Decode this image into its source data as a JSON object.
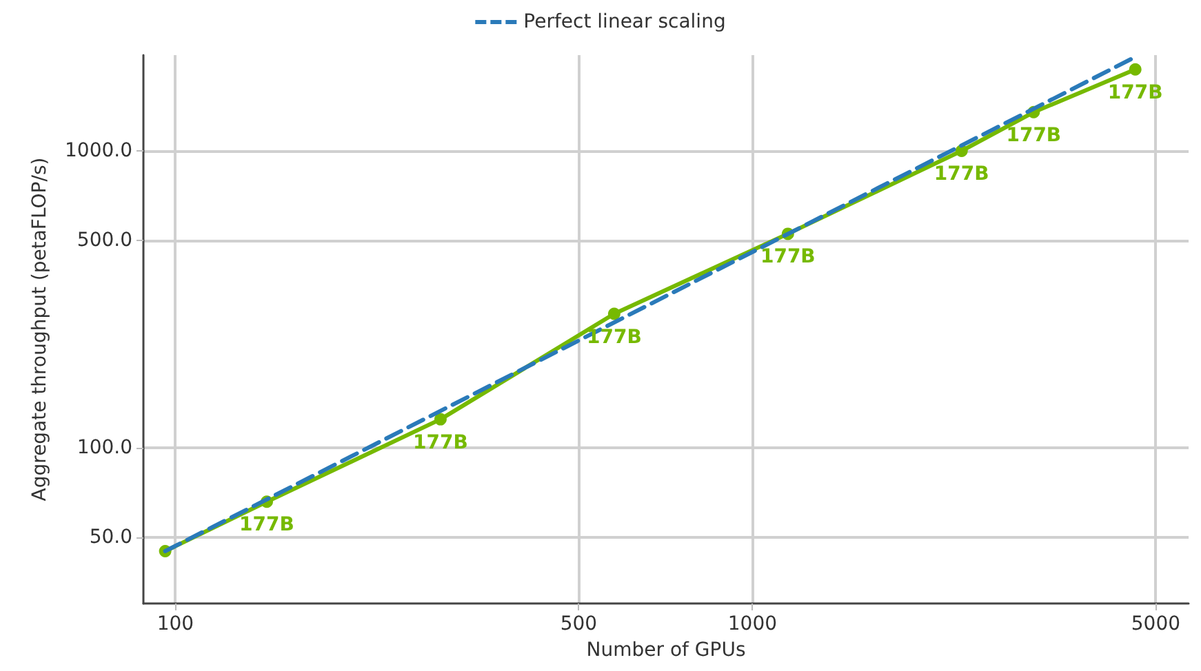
{
  "chart_data": {
    "type": "line",
    "xlabel": "Number of GPUs",
    "ylabel": "Aggregate throughput (petaFLOP/s)",
    "log": "xy",
    "xlim": [
      88,
      5700
    ],
    "ylim": [
      30,
      2100
    ],
    "xticks": [
      100,
      500,
      1000,
      5000
    ],
    "yticks": [
      {
        "value": 50,
        "label": "50.0"
      },
      {
        "value": 100,
        "label": "100.0"
      },
      {
        "value": 500,
        "label": "500.0"
      },
      {
        "value": 1000,
        "label": "1000.0"
      }
    ],
    "grid": true,
    "legend": "top",
    "series": [
      {
        "color": "#76b900",
        "marker": "circle",
        "line_style": "solid",
        "x": [
          96,
          144,
          288,
          576,
          1152,
          2304,
          3072,
          4608
        ],
        "values": [
          45,
          66,
          125,
          283,
          526,
          1000,
          1350,
          1880
        ]
      },
      {
        "name": "Perfect linear scaling",
        "color": "#2a7ab9",
        "marker": "none",
        "line_style": "dashed",
        "x": [
          96,
          4608
        ],
        "values": [
          45,
          2070
        ]
      }
    ],
    "annotations": [
      {
        "text": "177B",
        "x": 144,
        "y": 66
      },
      {
        "text": "177B",
        "x": 288,
        "y": 125
      },
      {
        "text": "177B",
        "x": 576,
        "y": 283
      },
      {
        "text": "177B",
        "x": 1152,
        "y": 526
      },
      {
        "text": "177B",
        "x": 2304,
        "y": 1000
      },
      {
        "text": "177B",
        "x": 3072,
        "y": 1350
      },
      {
        "text": "177B",
        "x": 4608,
        "y": 1880
      }
    ]
  }
}
